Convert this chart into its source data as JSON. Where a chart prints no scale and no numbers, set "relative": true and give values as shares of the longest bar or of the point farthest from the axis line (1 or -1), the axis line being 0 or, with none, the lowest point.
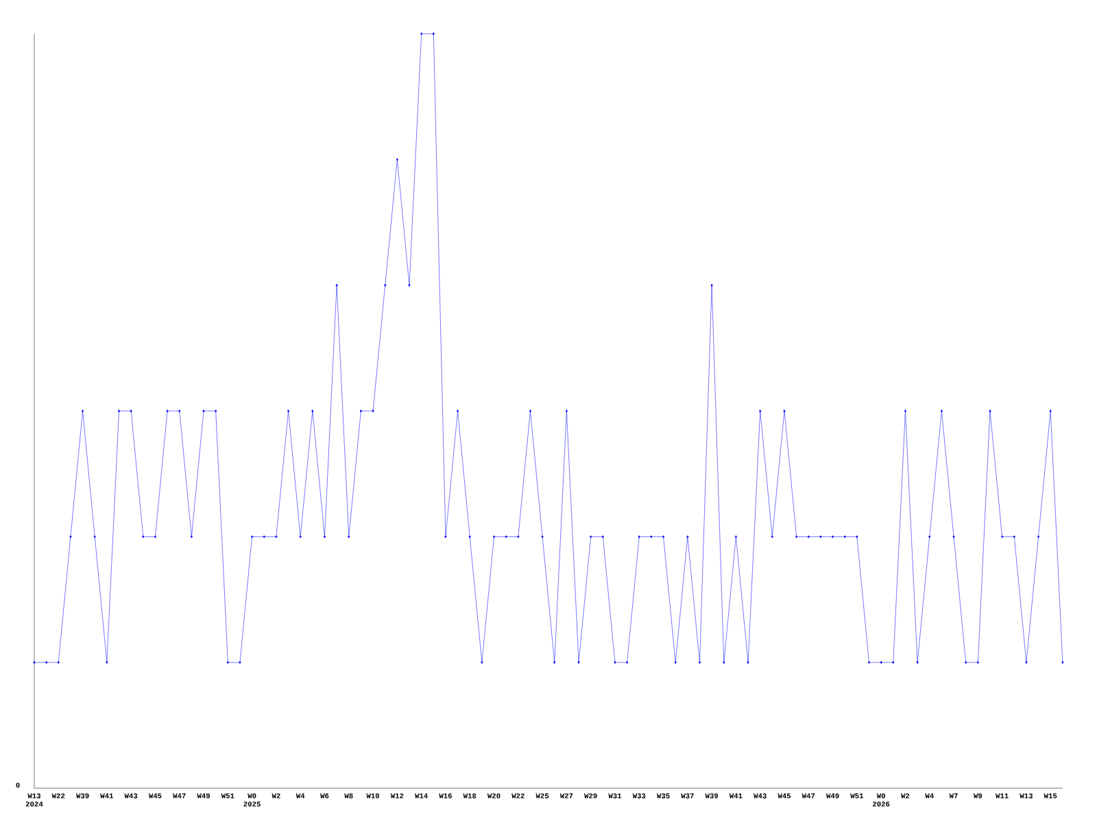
{
  "chart_data": {
    "type": "line",
    "relative": true,
    "color": "#0000ff",
    "marker": "diamond",
    "line_style": "solid",
    "grid": false,
    "categories": [
      "W13 2024",
      null,
      "W22",
      null,
      "W39",
      null,
      "W41",
      null,
      "W43",
      null,
      "W45",
      null,
      "W47",
      null,
      "W49",
      null,
      "W51",
      null,
      "W0 2025",
      null,
      "W2",
      null,
      "W4",
      null,
      "W6",
      null,
      "W8",
      null,
      "W10",
      null,
      "W12",
      null,
      "W14",
      null,
      "W16",
      null,
      "W18",
      null,
      "W20",
      null,
      "W22",
      null,
      "W25",
      null,
      "W27",
      null,
      "W29",
      null,
      "W31",
      null,
      "W33",
      null,
      "W35",
      null,
      "W37",
      null,
      "W39",
      null,
      "W41",
      null,
      "W43",
      null,
      "W45",
      null,
      "W47",
      null,
      "W49",
      null,
      "W51",
      null,
      "W0 2026",
      null,
      "W2",
      null,
      "W4",
      null,
      "W7",
      null,
      "W9",
      null,
      "W11",
      null,
      "W13",
      null,
      "W15",
      null
    ],
    "values": [
      0.1667,
      0.1667,
      0.1667,
      0.3333,
      0.5,
      0.3333,
      0.1667,
      0.5,
      0.5,
      0.3333,
      0.3333,
      0.5,
      0.5,
      0.3333,
      0.5,
      0.5,
      0.1667,
      0.1667,
      0.3333,
      0.3333,
      0.3333,
      0.5,
      0.3333,
      0.5,
      0.3333,
      0.6667,
      0.3333,
      0.5,
      0.5,
      0.6667,
      0.8333,
      0.6667,
      1,
      1,
      0.3333,
      0.5,
      0.3333,
      0.1667,
      0.3333,
      0.3333,
      0.3333,
      0.5,
      0.3333,
      0.1667,
      0.5,
      0.1667,
      0.3333,
      0.3333,
      0.1667,
      0.1667,
      0.3333,
      0.3333,
      0.3333,
      0.1667,
      0.3333,
      0.1667,
      0.6667,
      0.1667,
      0.3333,
      0.1667,
      0.5,
      0.3333,
      0.5,
      0.3333,
      0.3333,
      0.3333,
      0.3333,
      0.3333,
      0.3333,
      0.1667,
      0.1667,
      0.1667,
      0.5,
      0.1667,
      0.3333,
      0.5,
      0.3333,
      0.1667,
      0.1667,
      0.5,
      0.3333,
      0.3333,
      0.1667,
      0.3333,
      0.5,
      0.1667
    ],
    "annotations": [
      "0"
    ]
  }
}
